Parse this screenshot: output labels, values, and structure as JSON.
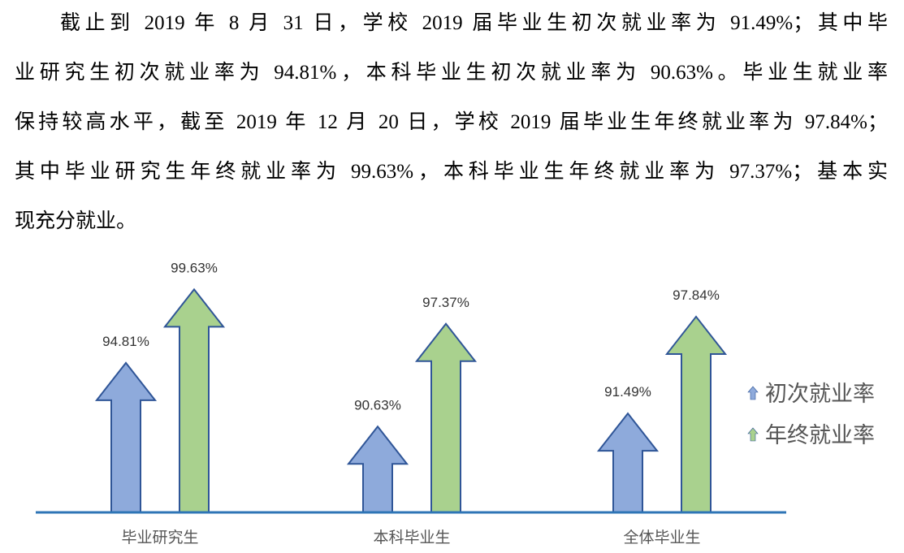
{
  "paragraph": {
    "lines": [
      "截止到 2019 年 8 月 31 日，学校 2019 届毕业生初次就业率为 91.49%；其中毕",
      "业研究生初次就业率为 94.81%，本科毕业生初次就业率为 90.63%。毕业生就业率",
      "保持较高水平，截至 2019 年 12 月 20 日，学校 2019 届毕业生年终就业率为 97.84%；",
      "其中毕业研究生年终就业率为 99.63%，本科毕业生年终就业率为 97.37%；基本实",
      "现充分就业。"
    ]
  },
  "chart_data": {
    "type": "bar",
    "mark": "arrow",
    "categories": [
      "毕业研究生",
      "本科毕业生",
      "全体毕业生"
    ],
    "series": [
      {
        "name": "初次就业率",
        "values": [
          94.81,
          90.63,
          91.49
        ],
        "labels": [
          "94.81%",
          "90.63%",
          "91.49%"
        ],
        "color": "#8eaadb"
      },
      {
        "name": "年终就业率",
        "values": [
          99.63,
          97.37,
          97.84
        ],
        "labels": [
          "99.63%",
          "97.37%",
          "97.84%"
        ],
        "color": "#a9d18e"
      }
    ],
    "outline_color": "#2f5597",
    "axis_color": "#2e75b6",
    "ylim": [
      85,
      100.5
    ],
    "legend": "right",
    "grid": false
  }
}
